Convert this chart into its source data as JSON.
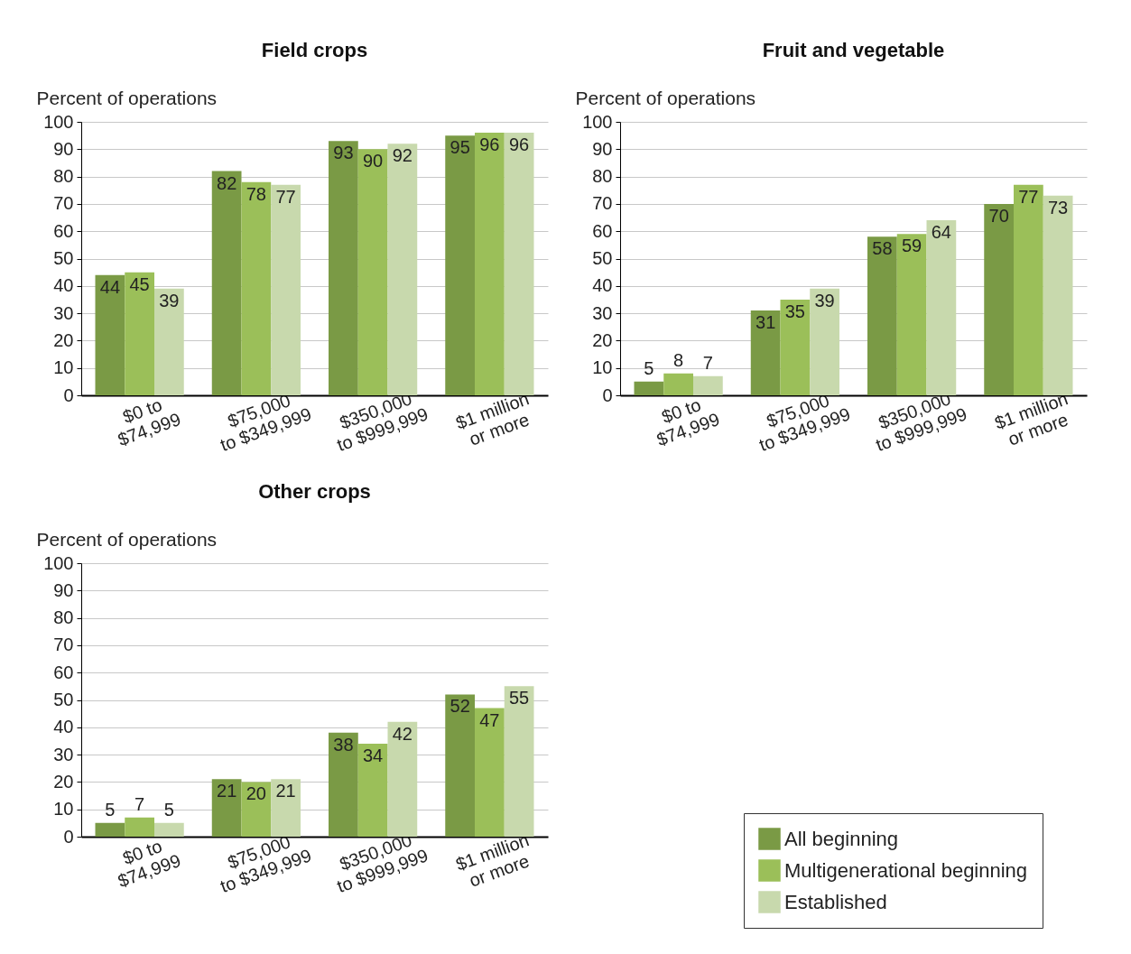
{
  "chart_data": [
    {
      "type": "bar",
      "title": "Field crops",
      "ylabel": "Percent of operations",
      "categories": [
        "$0 to\n$74,999",
        "$75,000\nto $349,999",
        "$350,000\nto $999,999",
        "$1 million\nor more"
      ],
      "ylim": [
        0,
        100
      ],
      "yticks": [
        0,
        10,
        20,
        30,
        40,
        50,
        60,
        70,
        80,
        90,
        100
      ],
      "grid": "y",
      "data_labels": true,
      "legend": "bottom right",
      "series": [
        {
          "name": "All beginning",
          "color": "#7a9a45",
          "values": [
            44,
            82,
            93,
            95
          ]
        },
        {
          "name": "Multigenerational beginning",
          "color": "#9bbf59",
          "values": [
            45,
            78,
            90,
            96
          ]
        },
        {
          "name": "Established",
          "color": "#c8d9ad",
          "values": [
            39,
            77,
            92,
            96
          ]
        }
      ]
    },
    {
      "type": "bar",
      "title": "Fruit and vegetable",
      "ylabel": "Percent of operations",
      "categories": [
        "$0 to\n$74,999",
        "$75,000\nto $349,999",
        "$350,000\nto $999,999",
        "$1 million\nor more"
      ],
      "ylim": [
        0,
        100
      ],
      "yticks": [
        0,
        10,
        20,
        30,
        40,
        50,
        60,
        70,
        80,
        90,
        100
      ],
      "grid": "y",
      "data_labels": true,
      "legend": "bottom right",
      "series": [
        {
          "name": "All beginning",
          "color": "#7a9a45",
          "values": [
            5,
            31,
            58,
            70
          ]
        },
        {
          "name": "Multigenerational beginning",
          "color": "#9bbf59",
          "values": [
            8,
            35,
            59,
            77
          ]
        },
        {
          "name": "Established",
          "color": "#c8d9ad",
          "values": [
            7,
            39,
            64,
            73
          ]
        }
      ]
    },
    {
      "type": "bar",
      "title": "Other crops",
      "ylabel": "Percent of operations",
      "categories": [
        "$0 to\n$74,999",
        "$75,000\nto $349,999",
        "$350,000\nto $999,999",
        "$1 million\nor more"
      ],
      "ylim": [
        0,
        100
      ],
      "yticks": [
        0,
        10,
        20,
        30,
        40,
        50,
        60,
        70,
        80,
        90,
        100
      ],
      "grid": "y",
      "data_labels": true,
      "legend": "bottom right",
      "series": [
        {
          "name": "All beginning",
          "color": "#7a9a45",
          "values": [
            5,
            21,
            38,
            52
          ]
        },
        {
          "name": "Multigenerational beginning",
          "color": "#9bbf59",
          "values": [
            7,
            20,
            34,
            47
          ]
        },
        {
          "name": "Established",
          "color": "#c8d9ad",
          "values": [
            5,
            21,
            42,
            55
          ]
        }
      ]
    }
  ]
}
